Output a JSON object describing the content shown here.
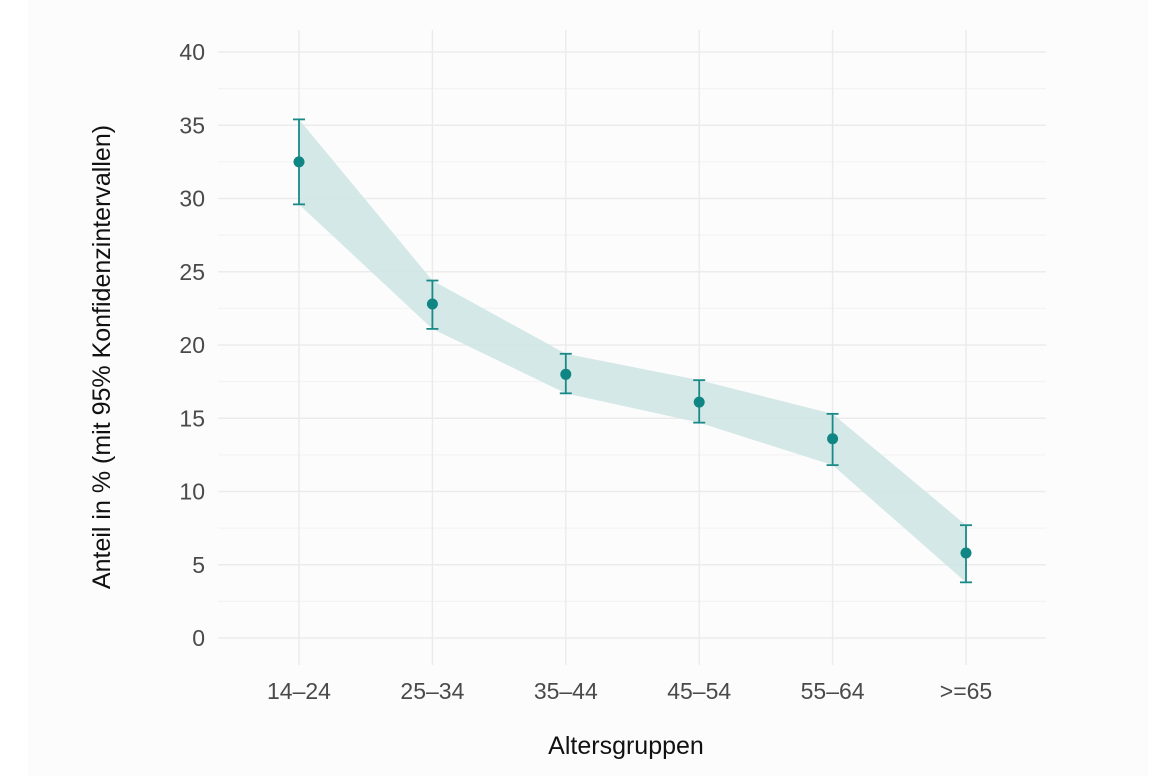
{
  "chart_data": {
    "type": "line",
    "title": "",
    "xlabel": "Altersgruppen",
    "ylabel": "Anteil in %  (mit 95% Konfidenzintervallen)",
    "categories": [
      "14–24",
      "25–34",
      "35–44",
      "45–54",
      "55–64",
      ">=65"
    ],
    "ylim": [
      0,
      40
    ],
    "yticks": [
      "0",
      "5",
      "10",
      "15",
      "20",
      "25",
      "30",
      "35",
      "40"
    ],
    "grid": true,
    "series": [
      {
        "values": [
          32.5,
          22.8,
          18.0,
          16.1,
          13.6,
          5.8
        ],
        "lower": [
          29.6,
          21.1,
          16.7,
          14.7,
          11.8,
          3.8
        ],
        "upper": [
          35.4,
          24.4,
          19.4,
          17.6,
          15.3,
          7.7
        ]
      }
    ],
    "colors": {
      "point": "#0f8584",
      "errorbar": "#1a8a89",
      "ribbon": "#cfe6e4",
      "grid": "#ebebeb"
    }
  }
}
